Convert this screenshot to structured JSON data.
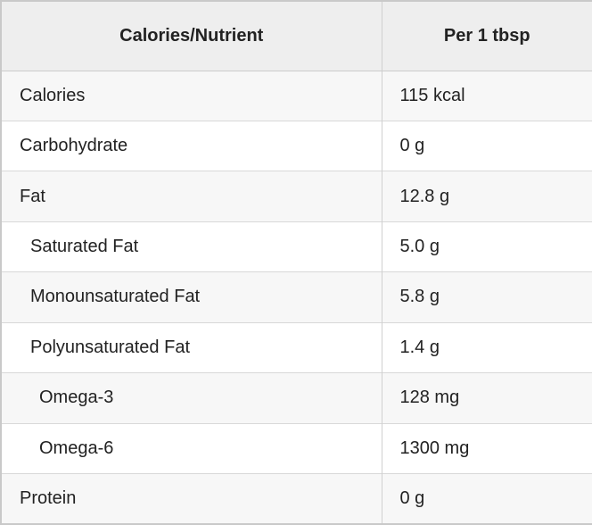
{
  "table": {
    "columns": [
      {
        "label": "Calories/Nutrient"
      },
      {
        "label": "Per 1 tbsp"
      }
    ],
    "rows": [
      {
        "nutrient": "Calories",
        "value": "115 kcal",
        "indent": 0
      },
      {
        "nutrient": "Carbohydrate",
        "value": "0 g",
        "indent": 0
      },
      {
        "nutrient": "Fat",
        "value": "12.8 g",
        "indent": 0
      },
      {
        "nutrient": "Saturated Fat",
        "value": "5.0 g",
        "indent": 1
      },
      {
        "nutrient": "Monounsaturated Fat",
        "value": "5.8 g",
        "indent": 1
      },
      {
        "nutrient": "Polyunsaturated Fat",
        "value": "1.4 g",
        "indent": 1
      },
      {
        "nutrient": "Omega-3",
        "value": "128 mg",
        "indent": 2
      },
      {
        "nutrient": "Omega-6",
        "value": "1300 mg",
        "indent": 2
      },
      {
        "nutrient": "Protein",
        "value": "0 g",
        "indent": 0
      }
    ]
  },
  "chart_data": {
    "type": "table",
    "title": "",
    "columns": [
      "Calories/Nutrient",
      "Per 1 tbsp"
    ],
    "rows": [
      [
        "Calories",
        "115 kcal"
      ],
      [
        "Carbohydrate",
        "0 g"
      ],
      [
        "Fat",
        "12.8 g"
      ],
      [
        "Saturated Fat",
        "5.0 g"
      ],
      [
        "Monounsaturated Fat",
        "5.8 g"
      ],
      [
        "Polyunsaturated Fat",
        "1.4 g"
      ],
      [
        "Omega-3",
        "128 mg"
      ],
      [
        "Omega-6",
        "1300 mg"
      ],
      [
        "Protein",
        "0 g"
      ]
    ],
    "layout_hints": {
      "striped_rows": true,
      "stripe_starts_on_first_body_row": true,
      "indent_levels": [
        0,
        0,
        0,
        1,
        1,
        1,
        2,
        2,
        0
      ]
    }
  },
  "colors": {
    "header_bg": "#eeeeee",
    "stripe_row_bg": "#f7f7f7",
    "plain_row_bg": "#ffffff",
    "outer_border": "#c9c9c9",
    "row_border": "#d8d8d8",
    "column_divider": "#d0d0d0",
    "text": "#222222"
  }
}
